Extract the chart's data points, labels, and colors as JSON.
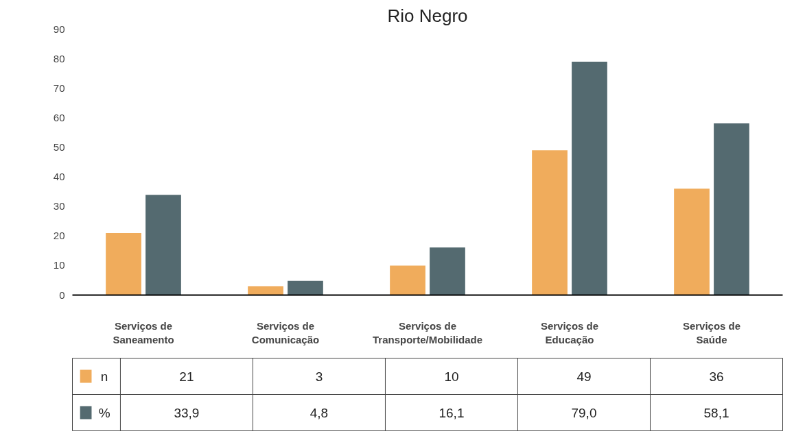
{
  "chart_data": {
    "type": "bar",
    "title": "Rio Negro",
    "categories": [
      "Serviços de\nSaneamento",
      "Serviços de\nComunicação",
      "Serviços de\nTransporte/Mobilidade",
      "Serviços de\nEducação",
      "Serviços de\nSaúde"
    ],
    "series": [
      {
        "name": "n",
        "color": "#f0ac5c",
        "values": [
          21,
          3,
          10,
          49,
          36
        ],
        "value_labels": [
          "21",
          "3",
          "10",
          "49",
          "36"
        ]
      },
      {
        "name": "%",
        "color": "#546a70",
        "values": [
          33.9,
          4.8,
          16.1,
          79.0,
          58.1
        ],
        "value_labels": [
          "33,9",
          "4,8",
          "16,1",
          "79,0",
          "58,1"
        ]
      }
    ],
    "ylim": [
      0,
      90
    ],
    "yticks": [
      0,
      10,
      20,
      30,
      40,
      50,
      60,
      70,
      80,
      90
    ],
    "grid": false,
    "legend": "bottom left"
  }
}
